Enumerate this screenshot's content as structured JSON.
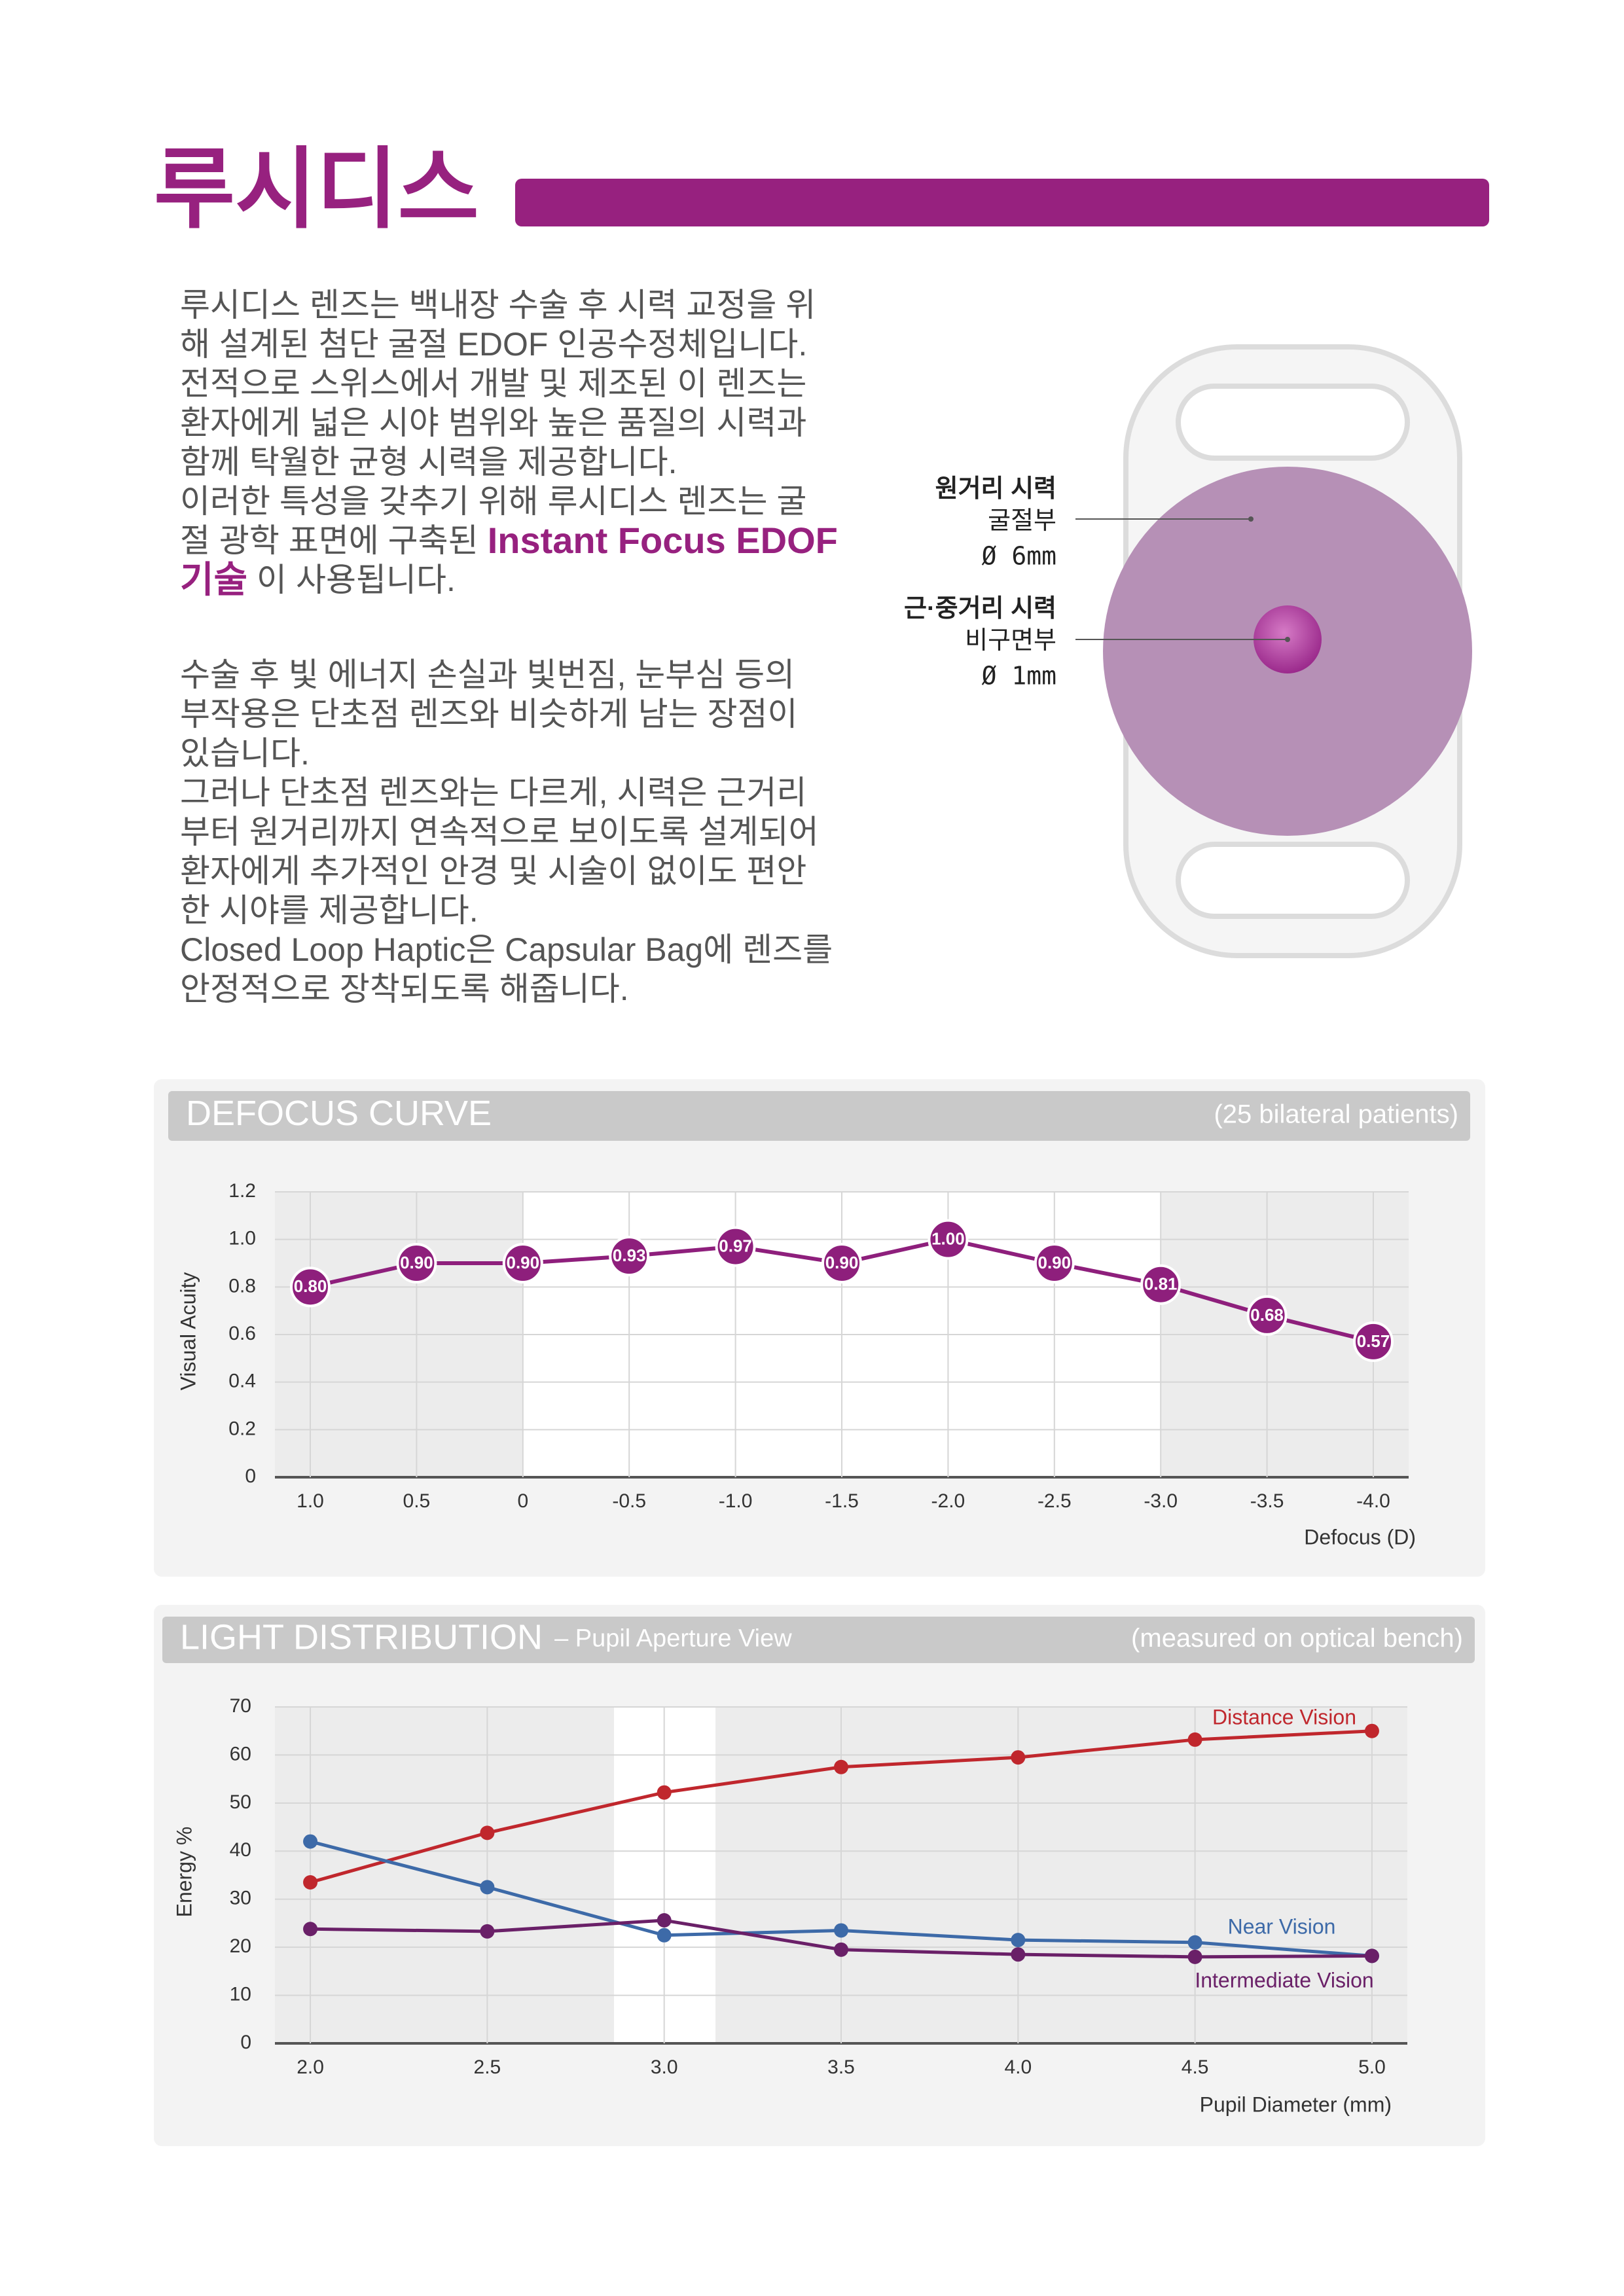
{
  "header": {
    "title": "루시디스"
  },
  "intro": {
    "lines": [
      "루시디스 렌즈는 백내장 수술 후 시력 교정을 위",
      "해 설계된 첨단 굴절 EDOF 인공수정체입니다.",
      "전적으로 스위스에서 개발 및 제조된 이 렌즈는",
      "환자에게 넓은 시야 범위와 높은 품질의 시력과",
      "함께 탁월한 균형 시력을 제공합니다.",
      "이러한 특성을 갖추기 위해 루시디스 렌즈는 굴"
    ],
    "emphasis_lines": [
      {
        "text": "절 광학 표면에 구축된",
        "highlight": "Instant Focus EDOF"
      },
      {
        "highlight": "기술",
        "text": "이 사용됩니다."
      }
    ]
  },
  "details": {
    "lines": [
      "수술 후 빛 에너지 손실과 빛번짐, 눈부심 등의",
      "부작용은 단초점 렌즈와 비슷하게 남는 장점이",
      "있습니다.",
      "그러나 단초점 렌즈와는 다르게, 시력은 근거리",
      "부터 원거리까지 연속적으로 보이도록 설계되어",
      "환자에게 추가적인 안경 및 시술이 없이도 편안",
      "한 시야를 제공합니다.",
      "Closed Loop Haptic은 Capsular Bag에 렌즈를",
      "안정적으로 장착되도록 해줍니다."
    ]
  },
  "lens": {
    "labels": [
      {
        "title": "원거리 시력",
        "part": "굴절부",
        "size": "Ø 6mm"
      },
      {
        "title": "근·중거리 시력",
        "part": "비구면부",
        "size": "Ø 1mm"
      }
    ]
  },
  "chart_data": [
    {
      "type": "line",
      "title": "DEFOCUS CURVE",
      "note": "(25 bilateral patients)",
      "y_label": "Visual Acuity",
      "x_label": "Defocus (D)",
      "categories": [
        "1.0",
        "0.5",
        "0",
        "-0.5",
        "-1.0",
        "-1.5",
        "-2.0",
        "-2.5",
        "-3.0",
        "-3.5",
        "-4.0"
      ],
      "series": [
        {
          "name": null,
          "color": "#8e1f7c",
          "values": [
            0.8,
            0.9,
            0.9,
            0.93,
            0.97,
            0.9,
            1.0,
            0.9,
            0.81,
            0.68,
            0.57
          ],
          "value_labels": [
            "0.80",
            "0.90",
            "0.90",
            "0.93",
            "0.97",
            "0.90",
            "1.00",
            "0.90",
            "0.81",
            "0.68",
            "0.57"
          ]
        }
      ],
      "ylim": [
        0,
        1.2
      ],
      "yticks": [
        0,
        0.2,
        0.4,
        0.6,
        0.8,
        {
          "value": 1,
          "label": "1.0"
        },
        1.2
      ],
      "grid": true
    },
    {
      "type": "line",
      "title": "LIGHT DISTRIBUTION",
      "subtitle": "– Pupil Aperture View",
      "note": "(measured on optical bench)",
      "y_label": "Energy %",
      "x_label": "Pupil Diameter (mm)",
      "x": [
        2.0,
        2.5,
        3.0,
        3.5,
        4.0,
        4.5,
        5.0
      ],
      "series": [
        {
          "name": "Distance Vision",
          "color": "#c0272d",
          "values": [
            33.5,
            43.8,
            52.2,
            57.5,
            59.5,
            63.2,
            65.0
          ]
        },
        {
          "name": "Near Vision",
          "color": "#3d6aa8",
          "values": [
            42.0,
            32.5,
            22.5,
            23.5,
            21.5,
            21.0,
            18.2
          ]
        },
        {
          "name": "Intermediate Vision",
          "color": "#6a2068",
          "values": [
            23.8,
            23.3,
            25.6,
            19.5,
            18.5,
            18.0,
            18.2
          ]
        }
      ],
      "xlim": [
        1.9,
        5.1
      ],
      "xticks": [
        {
          "value": 2,
          "label": "2.0"
        },
        2.5,
        {
          "value": 3,
          "label": "3.0"
        },
        3.5,
        {
          "value": 4,
          "label": "4.0"
        },
        4.5,
        {
          "value": 5,
          "label": "5.0"
        }
      ],
      "ylim": [
        0,
        70
      ],
      "yticks": [
        0,
        10,
        20,
        30,
        40,
        50,
        60,
        70
      ],
      "grid": true
    }
  ]
}
